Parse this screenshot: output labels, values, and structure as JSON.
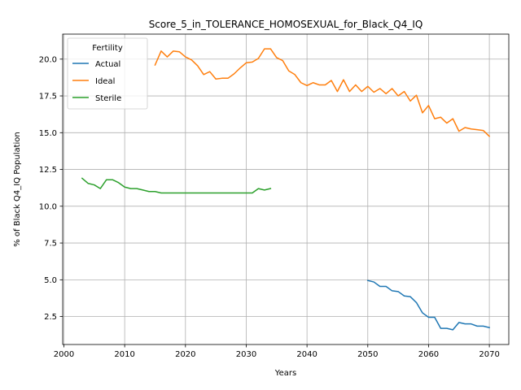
{
  "chart_data": {
    "type": "line",
    "title": "Score_5_in_TOLERANCE_HOMOSEXUAL_for_Black_Q4_IQ",
    "xlabel": "Years",
    "ylabel": "% of Black Q4_IQ Population",
    "xlim": [
      1999.8,
      2073.2
    ],
    "ylim": [
      0.6,
      21.7
    ],
    "xticks": [
      2000,
      2010,
      2020,
      2030,
      2040,
      2050,
      2060,
      2070
    ],
    "xtick_labels": [
      "2000",
      "2010",
      "2020",
      "2030",
      "2040",
      "2050",
      "2060",
      "2070"
    ],
    "yticks": [
      2.5,
      5.0,
      7.5,
      10.0,
      12.5,
      15.0,
      17.5,
      20.0
    ],
    "ytick_labels": [
      "2.5",
      "5.0",
      "7.5",
      "10.0",
      "12.5",
      "15.0",
      "17.5",
      "20.0"
    ],
    "grid": true,
    "legend": {
      "title": "Fertility",
      "placement": "upper-left"
    },
    "series": [
      {
        "name": "Actual",
        "color": "#1f77b4",
        "x": [
          2050,
          2051,
          2052,
          2053,
          2054,
          2055,
          2056,
          2057,
          2058,
          2059,
          2060,
          2061,
          2062,
          2063,
          2064,
          2065,
          2066,
          2067,
          2068,
          2069,
          2070
        ],
        "y": [
          4.95,
          4.85,
          4.55,
          4.55,
          4.25,
          4.2,
          3.9,
          3.85,
          3.45,
          2.75,
          2.45,
          2.45,
          1.7,
          1.7,
          1.6,
          2.1,
          2.0,
          2.0,
          1.85,
          1.85,
          1.75
        ]
      },
      {
        "name": "Ideal",
        "color": "#ff7f0e",
        "x": [
          2015,
          2016,
          2017,
          2018,
          2019,
          2020,
          2021,
          2022,
          2023,
          2024,
          2025,
          2026,
          2027,
          2028,
          2029,
          2030,
          2031,
          2032,
          2033,
          2034,
          2035,
          2036,
          2037,
          2038,
          2039,
          2040,
          2041,
          2042,
          2043,
          2044,
          2045,
          2046,
          2047,
          2048,
          2049,
          2050,
          2051,
          2052,
          2053,
          2054,
          2055,
          2056,
          2057,
          2058,
          2059,
          2060,
          2061,
          2062,
          2063,
          2064,
          2065,
          2066,
          2067,
          2068,
          2069,
          2070
        ],
        "y": [
          19.6,
          20.55,
          20.15,
          20.55,
          20.5,
          20.15,
          19.95,
          19.55,
          18.95,
          19.15,
          18.65,
          18.7,
          18.7,
          19.0,
          19.4,
          19.75,
          19.8,
          20.05,
          20.7,
          20.7,
          20.1,
          19.9,
          19.2,
          18.95,
          18.4,
          18.2,
          18.4,
          18.25,
          18.25,
          18.55,
          17.8,
          18.6,
          17.8,
          18.25,
          17.8,
          18.15,
          17.75,
          18.0,
          17.65,
          18.0,
          17.5,
          17.8,
          17.15,
          17.55,
          16.35,
          16.85,
          15.95,
          16.05,
          15.65,
          15.95,
          15.1,
          15.35,
          15.25,
          15.2,
          15.15,
          14.75
        ]
      },
      {
        "name": "Sterile",
        "color": "#2ca02c",
        "x": [
          2003,
          2004,
          2005,
          2006,
          2007,
          2008,
          2009,
          2010,
          2011,
          2012,
          2013,
          2014,
          2015,
          2016,
          2017,
          2018,
          2019,
          2020,
          2021,
          2022,
          2023,
          2024,
          2025,
          2026,
          2027,
          2028,
          2029,
          2030,
          2031,
          2032,
          2033,
          2034
        ],
        "y": [
          11.9,
          11.55,
          11.45,
          11.2,
          11.8,
          11.8,
          11.6,
          11.3,
          11.2,
          11.2,
          11.1,
          11.0,
          11.0,
          10.9,
          10.9,
          10.9,
          10.9,
          10.9,
          10.9,
          10.9,
          10.9,
          10.9,
          10.9,
          10.9,
          10.9,
          10.9,
          10.9,
          10.9,
          10.9,
          11.2,
          11.1,
          11.2
        ]
      }
    ]
  }
}
